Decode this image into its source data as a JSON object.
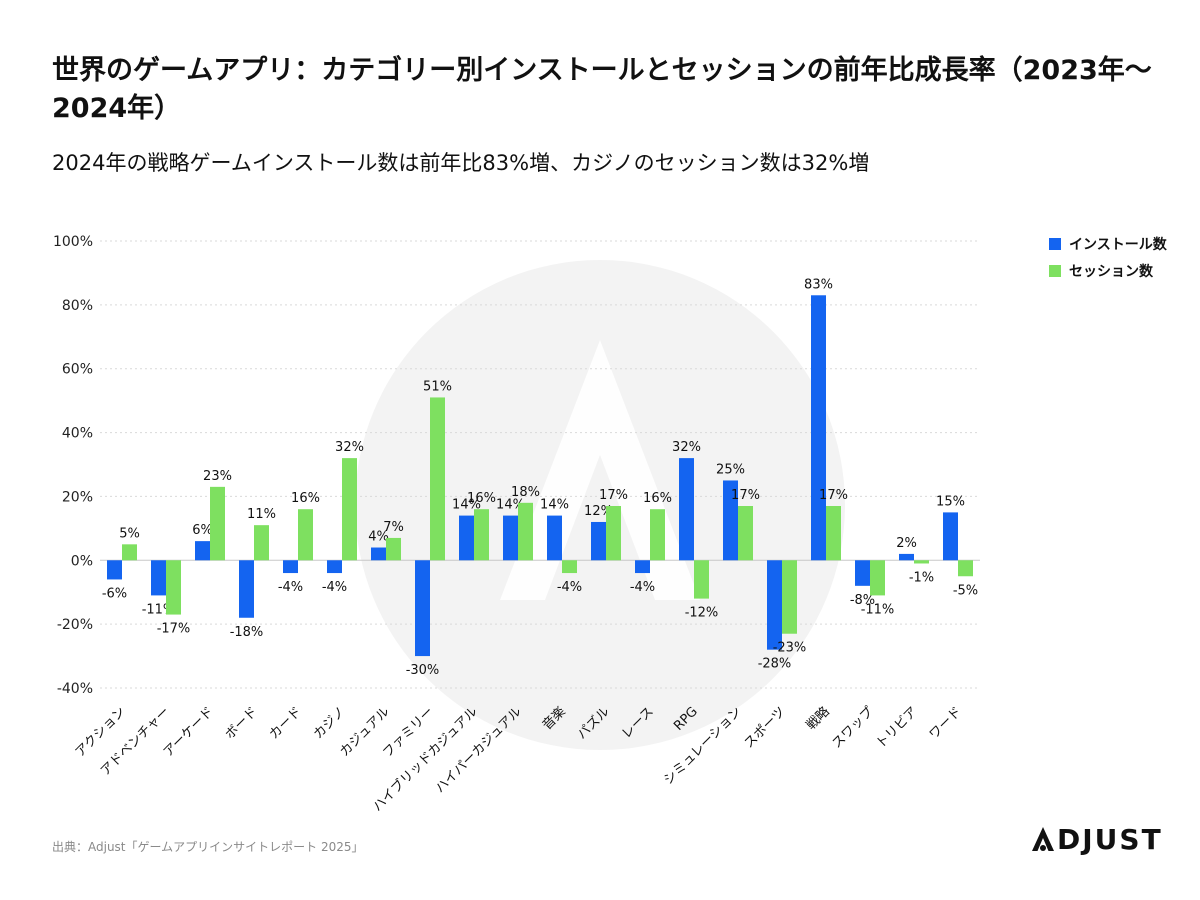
{
  "title": "世界のゲームアプリ：カテゴリー別インストールとセッションの前年比成長率（2023年～2024年）",
  "subtitle": "2024年の戦略ゲームインストール数は前年比83%増、カジノのセッション数は32%増",
  "source": "出典：Adjust「ゲームアプリインサイトレポート 2025」",
  "logo": {
    "text": "DJUST",
    "full": "ADJUST"
  },
  "colors": {
    "installs": "#1464f0",
    "sessions": "#7ee060",
    "grid": "#d9d9d9",
    "watermark": "#f3f3f3"
  },
  "chart_data": {
    "type": "bar",
    "title": "世界のゲームアプリ：カテゴリー別インストールとセッションの前年比成長率（2023年～2024年）",
    "xlabel": "",
    "ylabel": "",
    "ylim": [
      -40,
      100
    ],
    "yticks": [
      100,
      80,
      60,
      40,
      20,
      0,
      -20,
      -40
    ],
    "ytick_labels": [
      "100%",
      "80%",
      "60%",
      "40%",
      "20%",
      "0%",
      "-20%",
      "-40%"
    ],
    "legend_position": "top-right",
    "categories": [
      "アクション",
      "アドベンチャー",
      "アーケード",
      "ボード",
      "カード",
      "カジノ",
      "カジュアル",
      "ファミリー",
      "ハイブリッドカジュアル",
      "ハイパーカジュアル",
      "音楽",
      "パズル",
      "レース",
      "RPG",
      "シミュレーション",
      "スポーツ",
      "戦略",
      "スワップ",
      "トリビア",
      "ワード"
    ],
    "series": [
      {
        "name": "インストール数",
        "color": "#1464f0",
        "values": [
          -6,
          -11,
          6,
          -18,
          -4,
          -4,
          4,
          -30,
          14,
          14,
          14,
          12,
          -4,
          32,
          25,
          -28,
          83,
          -8,
          2,
          15
        ],
        "labels": [
          "-6%",
          "-11%",
          "6%",
          "-18%",
          "-4%",
          "-4%",
          "4%",
          "-30%",
          "14%",
          "14%",
          "14%",
          "12%",
          "-4%",
          "32%",
          "25%",
          "-28%",
          "83%",
          "-8%",
          "2%",
          "15%"
        ]
      },
      {
        "name": "セッション数",
        "color": "#7ee060",
        "values": [
          5,
          -17,
          23,
          11,
          16,
          32,
          7,
          51,
          16,
          18,
          -4,
          17,
          16,
          -12,
          17,
          -23,
          17,
          -11,
          -1,
          -5
        ],
        "labels": [
          "5%",
          "-17%",
          "23%",
          "11%",
          "16%",
          "32%",
          "7%",
          "51%",
          "16%",
          "18%",
          "-4%",
          "17%",
          "16%",
          "-12%",
          "17%",
          "-23%",
          "17%",
          "-11%",
          "-1%",
          "-5%"
        ]
      }
    ]
  }
}
